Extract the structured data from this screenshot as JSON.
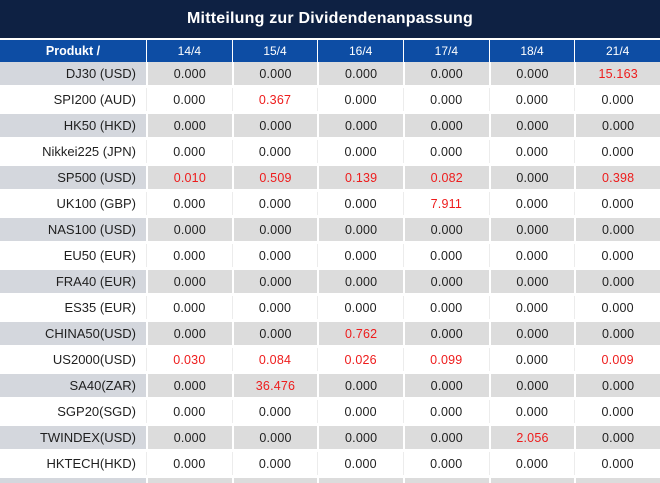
{
  "title": "Mitteilung zur Dividendenanpassung",
  "colors": {
    "navy": "#0E2143",
    "header_blue": "#0D4DA4",
    "row_gray_product": "#D4D7DD",
    "row_gray_values": "#DCDCDC",
    "highlight_red": "#EE1C1C",
    "text_black": "#1F1F1F"
  },
  "table": {
    "product_header": "Produkt /",
    "date_headers": [
      "14/4",
      "15/4",
      "16/4",
      "17/4",
      "18/4",
      "21/4"
    ],
    "rows": [
      {
        "product": "DJ30 (USD)",
        "values": [
          "0.000",
          "0.000",
          "0.000",
          "0.000",
          "0.000",
          "15.163"
        ],
        "red": [
          false,
          false,
          false,
          false,
          false,
          true
        ]
      },
      {
        "product": "SPI200 (AUD)",
        "values": [
          "0.000",
          "0.367",
          "0.000",
          "0.000",
          "0.000",
          "0.000"
        ],
        "red": [
          false,
          true,
          false,
          false,
          false,
          false
        ]
      },
      {
        "product": "HK50 (HKD)",
        "values": [
          "0.000",
          "0.000",
          "0.000",
          "0.000",
          "0.000",
          "0.000"
        ],
        "red": [
          false,
          false,
          false,
          false,
          false,
          false
        ]
      },
      {
        "product": "Nikkei225 (JPN)",
        "values": [
          "0.000",
          "0.000",
          "0.000",
          "0.000",
          "0.000",
          "0.000"
        ],
        "red": [
          false,
          false,
          false,
          false,
          false,
          false
        ]
      },
      {
        "product": "SP500 (USD)",
        "values": [
          "0.010",
          "0.509",
          "0.139",
          "0.082",
          "0.000",
          "0.398"
        ],
        "red": [
          true,
          true,
          true,
          true,
          false,
          true
        ]
      },
      {
        "product": "UK100 (GBP)",
        "values": [
          "0.000",
          "0.000",
          "0.000",
          "7.911",
          "0.000",
          "0.000"
        ],
        "red": [
          false,
          false,
          false,
          true,
          false,
          false
        ]
      },
      {
        "product": "NAS100 (USD)",
        "values": [
          "0.000",
          "0.000",
          "0.000",
          "0.000",
          "0.000",
          "0.000"
        ],
        "red": [
          false,
          false,
          false,
          false,
          false,
          false
        ]
      },
      {
        "product": "EU50 (EUR)",
        "values": [
          "0.000",
          "0.000",
          "0.000",
          "0.000",
          "0.000",
          "0.000"
        ],
        "red": [
          false,
          false,
          false,
          false,
          false,
          false
        ]
      },
      {
        "product": "FRA40 (EUR)",
        "values": [
          "0.000",
          "0.000",
          "0.000",
          "0.000",
          "0.000",
          "0.000"
        ],
        "red": [
          false,
          false,
          false,
          false,
          false,
          false
        ]
      },
      {
        "product": "ES35 (EUR)",
        "values": [
          "0.000",
          "0.000",
          "0.000",
          "0.000",
          "0.000",
          "0.000"
        ],
        "red": [
          false,
          false,
          false,
          false,
          false,
          false
        ]
      },
      {
        "product": "CHINA50(USD)",
        "values": [
          "0.000",
          "0.000",
          "0.762",
          "0.000",
          "0.000",
          "0.000"
        ],
        "red": [
          false,
          false,
          true,
          false,
          false,
          false
        ]
      },
      {
        "product": "US2000(USD)",
        "values": [
          "0.030",
          "0.084",
          "0.026",
          "0.099",
          "0.000",
          "0.009"
        ],
        "red": [
          true,
          true,
          true,
          true,
          false,
          true
        ]
      },
      {
        "product": "SA40(ZAR)",
        "values": [
          "0.000",
          "36.476",
          "0.000",
          "0.000",
          "0.000",
          "0.000"
        ],
        "red": [
          false,
          true,
          false,
          false,
          false,
          false
        ]
      },
      {
        "product": "SGP20(SGD)",
        "values": [
          "0.000",
          "0.000",
          "0.000",
          "0.000",
          "0.000",
          "0.000"
        ],
        "red": [
          false,
          false,
          false,
          false,
          false,
          false
        ]
      },
      {
        "product": "TWINDEX(USD)",
        "values": [
          "0.000",
          "0.000",
          "0.000",
          "0.000",
          "2.056",
          "0.000"
        ],
        "red": [
          false,
          false,
          false,
          false,
          true,
          false
        ]
      },
      {
        "product": "HKTECH(HKD)",
        "values": [
          "0.000",
          "0.000",
          "0.000",
          "0.000",
          "0.000",
          "0.000"
        ],
        "red": [
          false,
          false,
          false,
          false,
          false,
          false
        ]
      }
    ]
  }
}
